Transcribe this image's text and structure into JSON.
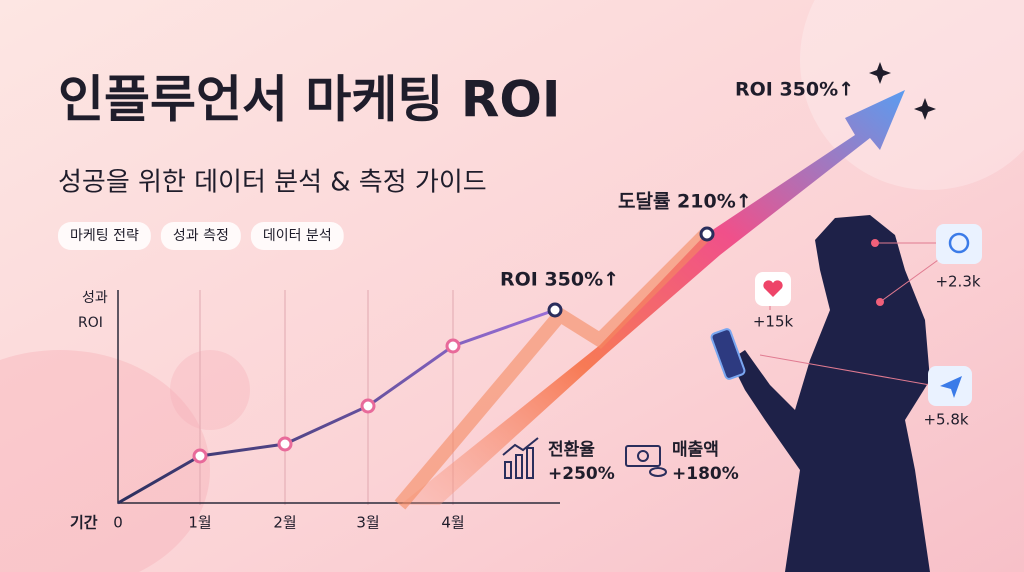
{
  "header": {
    "title": "인플루언서 마케팅 ROI",
    "subtitle": "성공을 위한 데이터 분석 & 측정 가이드",
    "tags": [
      "마케팅 전략",
      "성과 측정",
      "데이터 분석"
    ]
  },
  "chart": {
    "y_axis_label": [
      "성과",
      "ROI"
    ],
    "x_axis_label": "기간",
    "x_labels": [
      "0",
      "1월",
      "2월",
      "3월",
      "4월"
    ],
    "annotations": [
      "ROI 350%↑",
      "도달률 210%↑",
      "ROI 350%↑"
    ]
  },
  "metrics": [
    {
      "label": "전환율",
      "value": "+250%"
    },
    {
      "label": "매출액",
      "value": "+180%"
    }
  ],
  "social": [
    "+2.3k",
    "+15k",
    "+5.8k"
  ]
}
